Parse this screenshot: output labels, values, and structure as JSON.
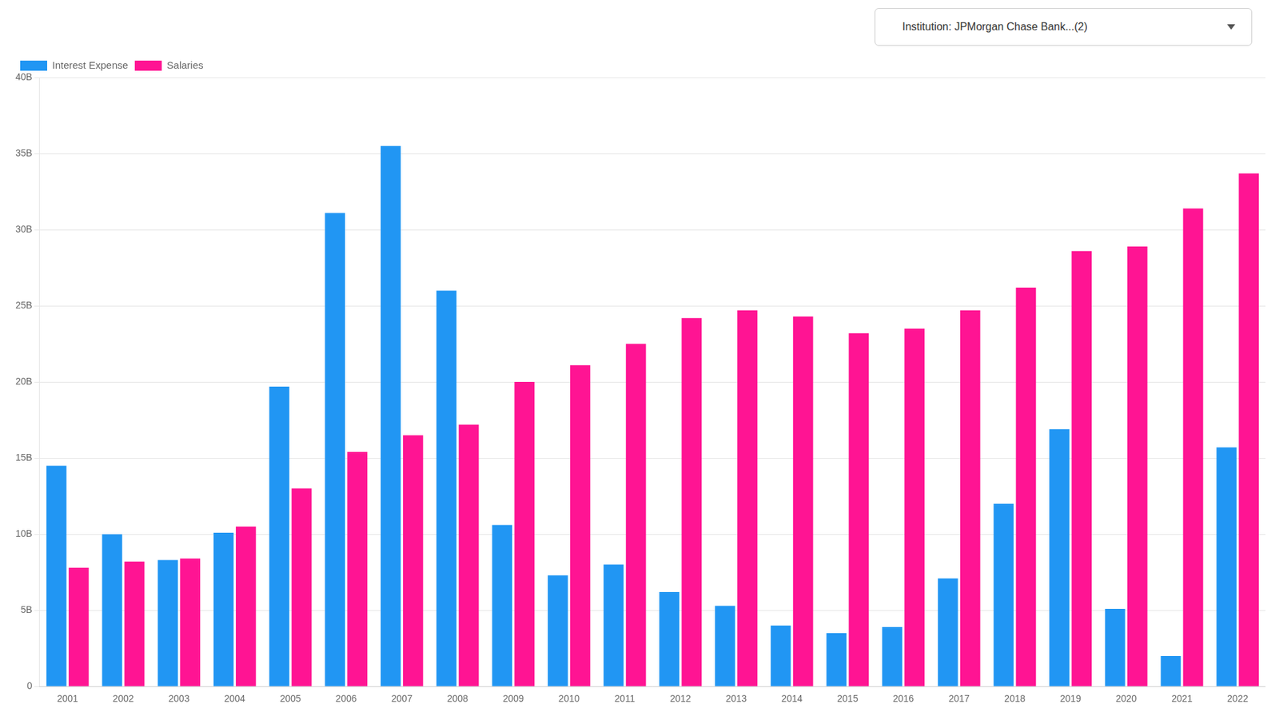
{
  "chart_data": {
    "type": "bar",
    "annotations": [
      "Institution: JPMorgan Chase Bank...(2)"
    ],
    "categories": [
      "2001",
      "2002",
      "2003",
      "2004",
      "2005",
      "2006",
      "2007",
      "2008",
      "2009",
      "2010",
      "2011",
      "2012",
      "2013",
      "2014",
      "2015",
      "2016",
      "2017",
      "2018",
      "2019",
      "2020",
      "2021",
      "2022"
    ],
    "series": [
      {
        "name": "Interest Expense",
        "color": "#2196F3",
        "values": [
          14500000000,
          10000000000,
          8300000000,
          10100000000,
          19700000000,
          31100000000,
          35500000000,
          26000000000,
          10600000000,
          7300000000,
          8000000000,
          6200000000,
          5300000000,
          4000000000,
          3500000000,
          3900000000,
          7100000000,
          12000000000,
          16900000000,
          5100000000,
          2000000000,
          15700000000
        ]
      },
      {
        "name": "Salaries",
        "color": "#FF1493",
        "values": [
          7800000000,
          8200000000,
          8400000000,
          10500000000,
          13000000000,
          15400000000,
          16500000000,
          17200000000,
          20000000000,
          21100000000,
          22500000000,
          24200000000,
          24700000000,
          24300000000,
          23200000000,
          23500000000,
          24700000000,
          26200000000,
          28600000000,
          28900000000,
          31400000000,
          33700000000
        ]
      }
    ],
    "ylim": [
      0,
      40000000000
    ],
    "yticks": [
      0,
      {
        "value": 5000000000,
        "label": "5B"
      },
      {
        "value": 10000000000,
        "label": "10B"
      },
      {
        "value": 15000000000,
        "label": "15B"
      },
      {
        "value": 20000000000,
        "label": "20B"
      },
      {
        "value": 25000000000,
        "label": "25B"
      },
      {
        "value": 30000000000,
        "label": "30B"
      },
      {
        "value": 35000000000,
        "label": "35B"
      },
      {
        "value": 40000000000,
        "label": "40B"
      }
    ],
    "grid": "y",
    "legend": "upper left"
  }
}
